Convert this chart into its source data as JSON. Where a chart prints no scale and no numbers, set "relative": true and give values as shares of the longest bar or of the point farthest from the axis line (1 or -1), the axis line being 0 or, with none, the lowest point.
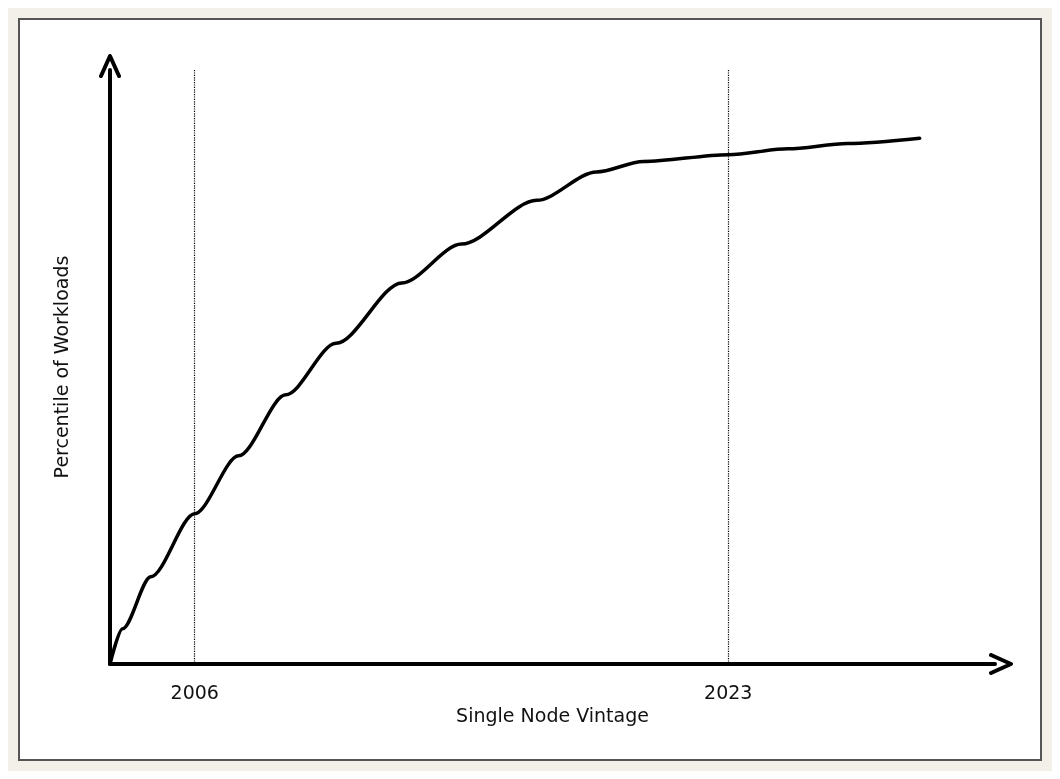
{
  "chart_data": {
    "type": "line",
    "xlabel": "Single Node Vintage",
    "ylabel": "Percentile of Workloads",
    "relative": true,
    "xlim": [
      2003.3,
      2031.5
    ],
    "xticks": [
      2006,
      2023
    ],
    "grid": false,
    "marker": "none",
    "line_style": "solid",
    "series": [
      {
        "color": "#000000",
        "x": [
          2003.3,
          2003.7,
          2004.6,
          2006,
          2007.4,
          2008.9,
          2010.5,
          2012.6,
          2014.5,
          2016.9,
          2018.8,
          2020.3,
          2023,
          2024.9,
          2026.8,
          2029.1
        ],
        "values": [
          0,
          0.067,
          0.166,
          0.286,
          0.396,
          0.512,
          0.61,
          0.725,
          0.799,
          0.882,
          0.936,
          0.956,
          0.969,
          0.98,
          0.99,
          1
        ]
      }
    ],
    "ref_lines": [
      {
        "axis": "x",
        "value": 2006,
        "color": "#000000",
        "line_style": "dotted"
      },
      {
        "axis": "x",
        "value": 2023,
        "color": "#000000",
        "line_style": "dotted"
      }
    ]
  }
}
